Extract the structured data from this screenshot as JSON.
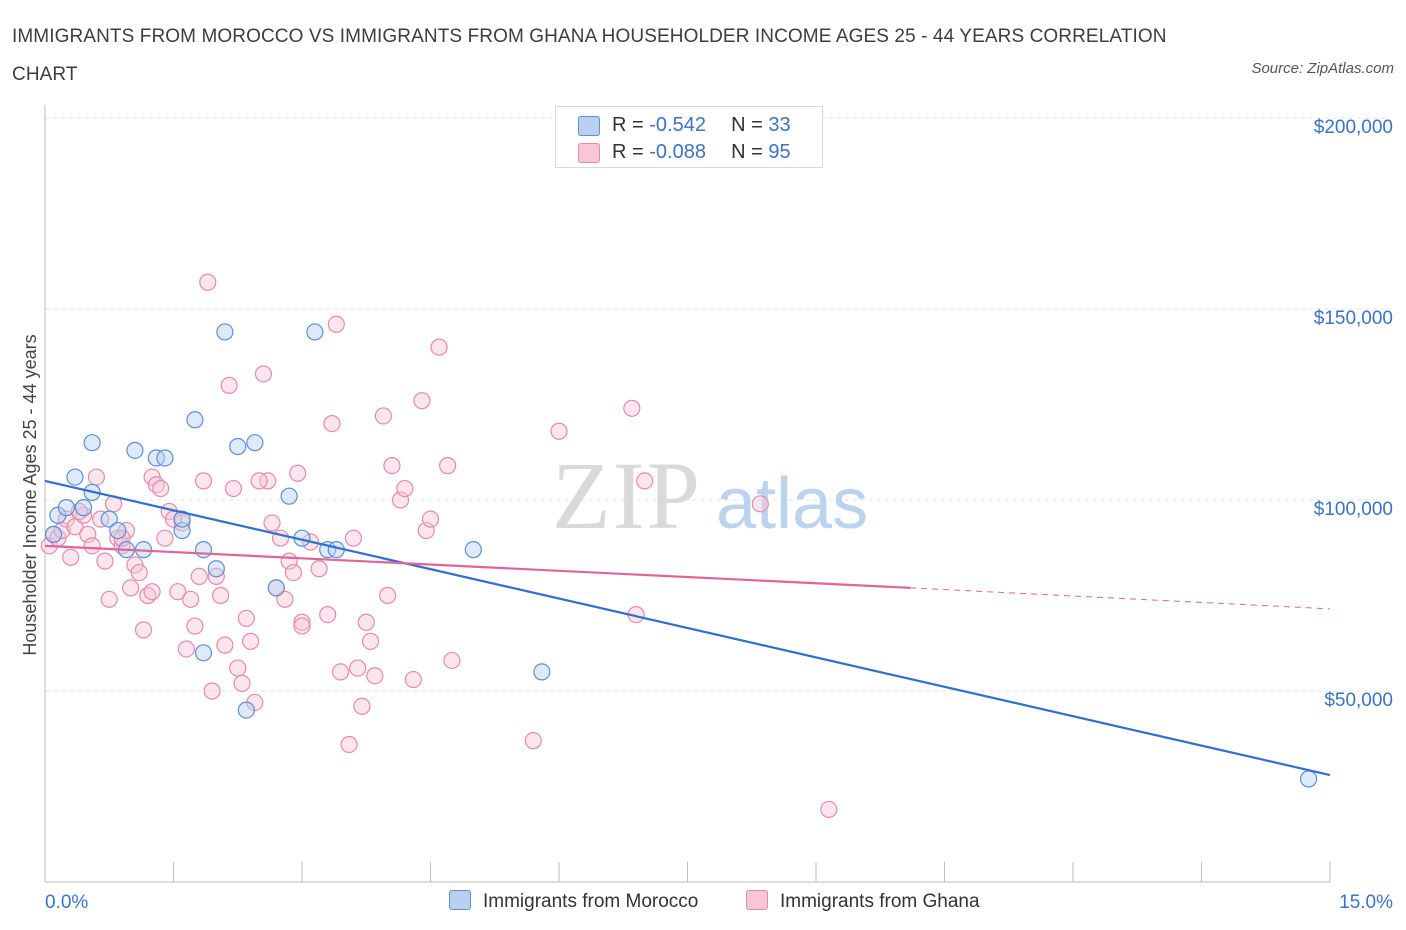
{
  "title": "IMMIGRANTS FROM MOROCCO VS IMMIGRANTS FROM GHANA HOUSEHOLDER INCOME AGES 25 - 44 YEARS CORRELATION CHART",
  "source": "Source: ZipAtlas.com",
  "watermark": {
    "zip": "ZIP",
    "atlas": "atlas"
  },
  "legend": {
    "morocco": {
      "r_label": "R = ",
      "r_value": "-0.542",
      "n_label": "N = ",
      "n_value": "33"
    },
    "ghana": {
      "r_label": "R = ",
      "r_value": "-0.088",
      "n_label": "N = ",
      "n_value": "95"
    }
  },
  "colors": {
    "morocco": "#5b8fd6",
    "morocco_fill": "#b8d0f2",
    "morocco_line": "#2e6fd0",
    "ghana": "#e88aa8",
    "ghana_fill": "#f8c6d6",
    "ghana_line": "#e0649a",
    "axis_text": "#3b73c4"
  },
  "chart_data": {
    "type": "scatter",
    "title": "IMMIGRANTS FROM MOROCCO VS IMMIGRANTS FROM GHANA HOUSEHOLDER INCOME AGES 25 - 44 YEARS CORRELATION CHART",
    "xlabel": "",
    "ylabel": "Householder Income Ages 25 - 44 years",
    "xlim": [
      0,
      15
    ],
    "ylim": [
      0,
      200000
    ],
    "x_tick_labels": [
      "0.0%",
      "15.0%"
    ],
    "y_ticks": [
      50000,
      100000,
      150000,
      200000
    ],
    "y_tick_labels": [
      "$50,000",
      "$100,000",
      "$150,000",
      "$200,000"
    ],
    "legend_position": "top-center",
    "grid": true,
    "series": [
      {
        "name": "Immigrants from Morocco",
        "points": [
          [
            0.1,
            91000
          ],
          [
            0.15,
            96000
          ],
          [
            0.25,
            98000
          ],
          [
            0.35,
            106000
          ],
          [
            0.55,
            115000
          ],
          [
            0.55,
            102000
          ],
          [
            0.75,
            95000
          ],
          [
            0.85,
            92000
          ],
          [
            0.95,
            87000
          ],
          [
            1.05,
            113000
          ],
          [
            1.15,
            87000
          ],
          [
            1.3,
            111000
          ],
          [
            1.4,
            111000
          ],
          [
            1.6,
            92000
          ],
          [
            1.6,
            95000
          ],
          [
            1.75,
            121000
          ],
          [
            1.85,
            60000
          ],
          [
            1.85,
            87000
          ],
          [
            2.0,
            82000
          ],
          [
            2.1,
            144000
          ],
          [
            2.25,
            114000
          ],
          [
            2.35,
            45000
          ],
          [
            2.45,
            115000
          ],
          [
            2.7,
            77000
          ],
          [
            2.85,
            101000
          ],
          [
            3.0,
            90000
          ],
          [
            3.15,
            144000
          ],
          [
            3.3,
            87000
          ],
          [
            3.4,
            87000
          ],
          [
            5.0,
            87000
          ],
          [
            5.8,
            55000
          ],
          [
            14.75,
            27000
          ],
          [
            0.45,
            98000
          ]
        ],
        "trend": {
          "x": [
            0,
            15
          ],
          "y": [
            105000,
            28000
          ]
        }
      },
      {
        "name": "Immigrants from Ghana",
        "points": [
          [
            0.05,
            88000
          ],
          [
            0.1,
            91000
          ],
          [
            0.15,
            90000
          ],
          [
            0.2,
            92000
          ],
          [
            0.25,
            95000
          ],
          [
            0.35,
            93000
          ],
          [
            0.45,
            96000
          ],
          [
            0.5,
            91000
          ],
          [
            0.55,
            88000
          ],
          [
            0.6,
            106000
          ],
          [
            0.65,
            95000
          ],
          [
            0.7,
            84000
          ],
          [
            0.75,
            74000
          ],
          [
            0.8,
            99000
          ],
          [
            0.85,
            90000
          ],
          [
            0.9,
            88000
          ],
          [
            0.95,
            92000
          ],
          [
            1.0,
            77000
          ],
          [
            1.05,
            83000
          ],
          [
            1.1,
            81000
          ],
          [
            1.15,
            66000
          ],
          [
            1.2,
            75000
          ],
          [
            1.25,
            106000
          ],
          [
            1.3,
            104000
          ],
          [
            1.35,
            103000
          ],
          [
            1.4,
            90000
          ],
          [
            1.45,
            97000
          ],
          [
            1.55,
            76000
          ],
          [
            1.6,
            94000
          ],
          [
            1.65,
            61000
          ],
          [
            1.7,
            74000
          ],
          [
            1.75,
            67000
          ],
          [
            1.8,
            80000
          ],
          [
            1.85,
            105000
          ],
          [
            1.9,
            157000
          ],
          [
            1.95,
            50000
          ],
          [
            2.0,
            80000
          ],
          [
            2.05,
            75000
          ],
          [
            2.1,
            62000
          ],
          [
            2.15,
            130000
          ],
          [
            2.2,
            103000
          ],
          [
            2.25,
            56000
          ],
          [
            2.3,
            52000
          ],
          [
            2.35,
            69000
          ],
          [
            2.4,
            63000
          ],
          [
            2.45,
            47000
          ],
          [
            2.55,
            133000
          ],
          [
            2.6,
            105000
          ],
          [
            2.65,
            94000
          ],
          [
            2.7,
            77000
          ],
          [
            2.75,
            90000
          ],
          [
            2.8,
            74000
          ],
          [
            2.85,
            84000
          ],
          [
            2.9,
            81000
          ],
          [
            2.95,
            107000
          ],
          [
            3.0,
            68000
          ],
          [
            3.1,
            89000
          ],
          [
            3.2,
            82000
          ],
          [
            3.3,
            70000
          ],
          [
            3.35,
            120000
          ],
          [
            3.4,
            146000
          ],
          [
            3.45,
            55000
          ],
          [
            3.55,
            36000
          ],
          [
            3.6,
            90000
          ],
          [
            3.65,
            56000
          ],
          [
            3.7,
            46000
          ],
          [
            3.75,
            68000
          ],
          [
            3.8,
            63000
          ],
          [
            3.85,
            54000
          ],
          [
            3.95,
            122000
          ],
          [
            4.0,
            75000
          ],
          [
            4.05,
            109000
          ],
          [
            4.15,
            100000
          ],
          [
            4.2,
            103000
          ],
          [
            4.3,
            53000
          ],
          [
            4.4,
            126000
          ],
          [
            4.45,
            92000
          ],
          [
            4.5,
            95000
          ],
          [
            4.6,
            140000
          ],
          [
            4.7,
            109000
          ],
          [
            4.75,
            58000
          ],
          [
            5.7,
            37000
          ],
          [
            6.0,
            118000
          ],
          [
            6.85,
            124000
          ],
          [
            6.9,
            70000
          ],
          [
            7.0,
            105000
          ],
          [
            8.35,
            99000
          ],
          [
            9.15,
            19000
          ],
          [
            0.3,
            85000
          ],
          [
            0.4,
            97000
          ],
          [
            1.5,
            95000
          ],
          [
            2.5,
            105000
          ],
          [
            3.0,
            67000
          ],
          [
            0.9,
            90000
          ],
          [
            1.25,
            76000
          ]
        ],
        "trend": {
          "x": [
            0,
            10.1
          ],
          "y": [
            88000,
            77000
          ]
        },
        "trend_extension": {
          "x": [
            10.1,
            15
          ],
          "y": [
            77000,
            71500
          ]
        }
      }
    ]
  }
}
